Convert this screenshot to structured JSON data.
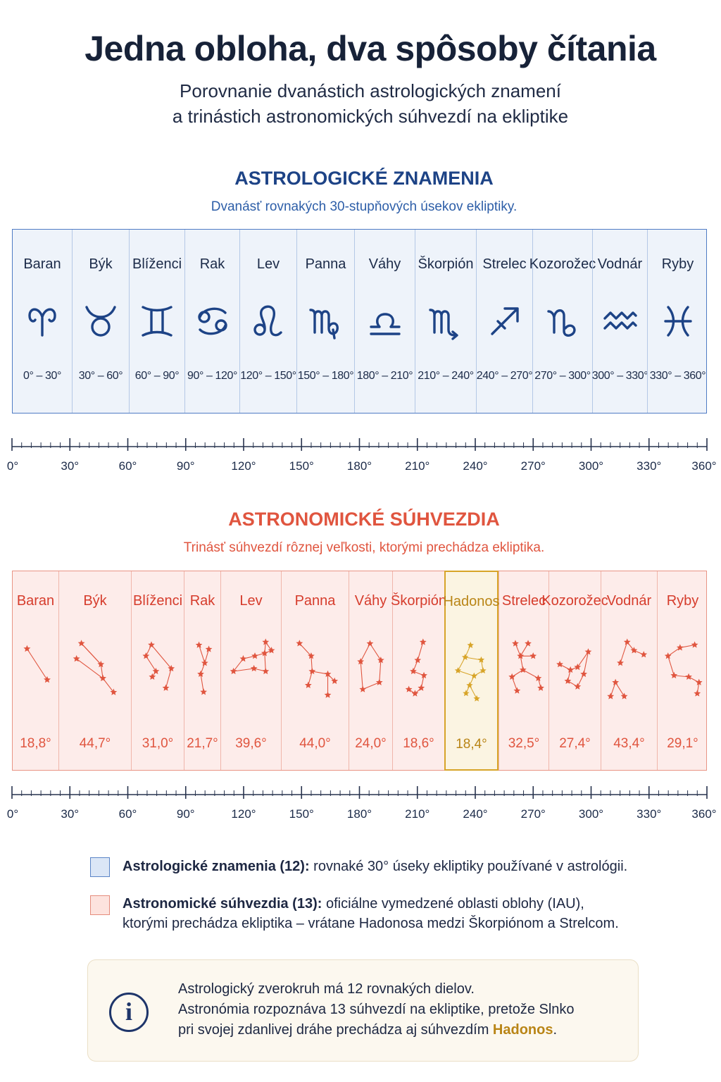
{
  "header": {
    "title": "Jedna obloha, dva spôsoby čítania",
    "subtitle_line1": "Porovnanie dvanástich astrologických znamení",
    "subtitle_line2": "a trinástich astronomických súhvezdí na ekliptike"
  },
  "astrology": {
    "heading": "ASTROLOGICKÉ ZNAMENIA",
    "description": "Dvanásť rovnakých 30-stupňových úsekov ekliptiky.",
    "signs": [
      {
        "name": "Baran",
        "icon": "aries-icon",
        "range": "0° – 30°"
      },
      {
        "name": "Býk",
        "icon": "taurus-icon",
        "range": "30° – 60°"
      },
      {
        "name": "Blíženci",
        "icon": "gemini-icon",
        "range": "60° – 90°"
      },
      {
        "name": "Rak",
        "icon": "cancer-icon",
        "range": "90° – 120°"
      },
      {
        "name": "Lev",
        "icon": "leo-icon",
        "range": "120° – 150°"
      },
      {
        "name": "Panna",
        "icon": "virgo-icon",
        "range": "150° – 180°"
      },
      {
        "name": "Váhy",
        "icon": "libra-icon",
        "range": "180° – 210°"
      },
      {
        "name": "Škorpión",
        "icon": "scorpio-icon",
        "range": "210° – 240°"
      },
      {
        "name": "Strelec",
        "icon": "sagittarius-icon",
        "range": "240° – 270°"
      },
      {
        "name": "Kozorožec",
        "icon": "capricorn-icon",
        "range": "270° – 300°"
      },
      {
        "name": "Vodnár",
        "icon": "aquarius-icon",
        "range": "300° – 330°"
      },
      {
        "name": "Ryby",
        "icon": "pisces-icon",
        "range": "330° – 360°"
      }
    ]
  },
  "astronomy": {
    "heading": "ASTRONOMICKÉ SÚHVEZDIA",
    "description": "Trinásť súhvezdí rôznej veľkosti, ktorými prechádza ekliptika.",
    "constellations": [
      {
        "name": "Baran",
        "size": "18,8°",
        "highlight": false
      },
      {
        "name": "Býk",
        "size": "44,7°",
        "highlight": false
      },
      {
        "name": "Blíženci",
        "size": "31,0°",
        "highlight": false
      },
      {
        "name": "Rak",
        "size": "21,7°",
        "highlight": false
      },
      {
        "name": "Lev",
        "size": "39,6°",
        "highlight": false
      },
      {
        "name": "Panna",
        "size": "44,0°",
        "highlight": false
      },
      {
        "name": "Váhy",
        "size": "24,0°",
        "highlight": false
      },
      {
        "name": "Škorpión",
        "size": "18,6°",
        "highlight": false
      },
      {
        "name": "Hadonos",
        "size": "18,4°",
        "highlight": true
      },
      {
        "name": "Strelec",
        "size": "32,5°",
        "highlight": false
      },
      {
        "name": "Kozorožec",
        "size": "27,4°",
        "highlight": false
      },
      {
        "name": "Vodnár",
        "size": "43,4°",
        "highlight": false
      },
      {
        "name": "Ryby",
        "size": "29,1°",
        "highlight": false
      }
    ]
  },
  "axis_labels": [
    "0°",
    "30°",
    "60°",
    "90°",
    "120°",
    "150°",
    "180°",
    "210°",
    "240°",
    "270°",
    "300°",
    "330°",
    "360°"
  ],
  "legend": {
    "astro_bold": "Astrologické znamenia (12):",
    "astro_text": " rovnaké 30° úseky ekliptiky používané v astrológii.",
    "sky_bold": "Astronomické súhvezdia (13):",
    "sky_text": " oficiálne vymedzené oblasti oblohy (IAU),",
    "sky_text2": "ktorými prechádza ekliptika – vrátane Hadonosa medzi Škorpiónom a Strelcom."
  },
  "info": {
    "icon": "info-icon",
    "line1": "Astrologický zverokruh má 12 rovnakých dielov.",
    "line2": "Astronómia rozpoznáva 13 súhvezdí na ekliptike, pretože Slnko",
    "line3_prefix": "pri svojej zdanlivej dráhe prechádza aj súhvezdím ",
    "line3_highlight": "Hadonos",
    "line3_suffix": "."
  },
  "colors": {
    "astro_accent": "#1d4386",
    "sky_accent": "#e0553f",
    "highlight": "#b98516"
  }
}
